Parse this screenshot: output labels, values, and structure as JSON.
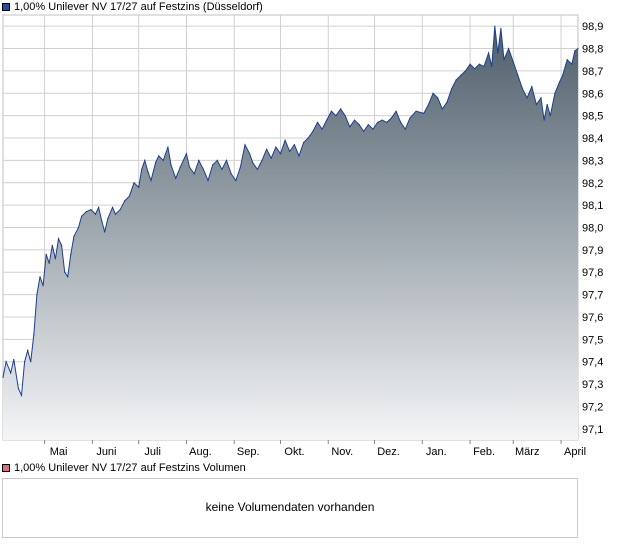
{
  "legend": {
    "price_label": "1,00% Unilever NV 17/27 auf Festzins (Düsseldorf)",
    "volume_label": "1,00% Unilever NV 17/27 auf Festzins Volumen"
  },
  "volume_panel": {
    "message": "keine Volumendaten vorhanden"
  },
  "colors": {
    "line": "#1d3f8e",
    "area_top": "#4d5e6a",
    "area_bottom": "#f4f5f7",
    "grid": "#d0d0d0",
    "price_swatch": "#1f4e9c",
    "volume_swatch": "#d9707a"
  },
  "chart_data": {
    "type": "area",
    "title": "1,00% Unilever NV 17/27 auf Festzins (Düsseldorf)",
    "xlabel": "",
    "ylabel": "",
    "ylim": [
      97.05,
      98.95
    ],
    "grid": true,
    "y_ticks": [
      "98,9",
      "98,8",
      "98,7",
      "98,6",
      "98,5",
      "98,4",
      "98,3",
      "98,2",
      "98,1",
      "98,0",
      "97,9",
      "97,8",
      "97,7",
      "97,6",
      "97,5",
      "97,4",
      "97,3",
      "97,2",
      "97,1"
    ],
    "x_ticks": [
      "Mai",
      "Juni",
      "Juli",
      "Aug.",
      "Sep.",
      "Okt.",
      "Nov.",
      "Dez.",
      "Jan.",
      "Feb.",
      "März",
      "April"
    ],
    "series": [
      {
        "name": "1,00% Unilever NV 17/27 auf Festzins",
        "points": [
          [
            "Apr 04",
            97.33
          ],
          [
            "Apr 06",
            97.4
          ],
          [
            "Apr 09",
            97.35
          ],
          [
            "Apr 11",
            97.41
          ],
          [
            "Apr 14",
            97.28
          ],
          [
            "Apr 16",
            97.25
          ],
          [
            "Apr 18",
            97.4
          ],
          [
            "Apr 20",
            97.45
          ],
          [
            "Apr 22",
            97.4
          ],
          [
            "Apr 24",
            97.52
          ],
          [
            "Apr 26",
            97.7
          ],
          [
            "Apr 28",
            97.78
          ],
          [
            "Apr 30",
            97.74
          ],
          [
            "Mai 02",
            97.88
          ],
          [
            "Mai 04",
            97.84
          ],
          [
            "Mai 06",
            97.92
          ],
          [
            "Mai 08",
            97.86
          ],
          [
            "Mai 10",
            97.95
          ],
          [
            "Mai 12",
            97.92
          ],
          [
            "Mai 14",
            97.8
          ],
          [
            "Mai 16",
            97.78
          ],
          [
            "Mai 18",
            97.88
          ],
          [
            "Mai 20",
            97.96
          ],
          [
            "Mai 23",
            98.0
          ],
          [
            "Mai 25",
            98.05
          ],
          [
            "Mai 28",
            98.07
          ],
          [
            "Mai 31",
            98.08
          ],
          [
            "Jun 03",
            98.06
          ],
          [
            "Jun 05",
            98.09
          ],
          [
            "Jun 07",
            98.03
          ],
          [
            "Jun 09",
            97.98
          ],
          [
            "Jun 11",
            98.04
          ],
          [
            "Jun 14",
            98.09
          ],
          [
            "Jun 16",
            98.06
          ],
          [
            "Jun 19",
            98.08
          ],
          [
            "Jun 22",
            98.12
          ],
          [
            "Jun 25",
            98.14
          ],
          [
            "Jun 28",
            98.2
          ],
          [
            "Jul 01",
            98.18
          ],
          [
            "Jul 03",
            98.26
          ],
          [
            "Jul 05",
            98.3
          ],
          [
            "Jul 07",
            98.25
          ],
          [
            "Jul 09",
            98.21
          ],
          [
            "Jul 12",
            98.29
          ],
          [
            "Jul 14",
            98.32
          ],
          [
            "Jul 17",
            98.3
          ],
          [
            "Jul 20",
            98.36
          ],
          [
            "Jul 22",
            98.28
          ],
          [
            "Jul 25",
            98.22
          ],
          [
            "Jul 28",
            98.27
          ],
          [
            "Aug 01",
            98.33
          ],
          [
            "Aug 03",
            98.27
          ],
          [
            "Aug 06",
            98.24
          ],
          [
            "Aug 09",
            98.3
          ],
          [
            "Aug 12",
            98.26
          ],
          [
            "Aug 15",
            98.21
          ],
          [
            "Aug 18",
            98.28
          ],
          [
            "Aug 21",
            98.3
          ],
          [
            "Aug 24",
            98.26
          ],
          [
            "Aug 27",
            98.3
          ],
          [
            "Aug 30",
            98.24
          ],
          [
            "Sep 02",
            98.21
          ],
          [
            "Sep 05",
            98.27
          ],
          [
            "Sep 08",
            98.37
          ],
          [
            "Sep 11",
            98.33
          ],
          [
            "Sep 13",
            98.29
          ],
          [
            "Sep 16",
            98.26
          ],
          [
            "Sep 19",
            98.3
          ],
          [
            "Sep 22",
            98.35
          ],
          [
            "Sep 25",
            98.31
          ],
          [
            "Sep 28",
            98.36
          ],
          [
            "Okt 01",
            98.33
          ],
          [
            "Okt 04",
            98.39
          ],
          [
            "Okt 07",
            98.34
          ],
          [
            "Okt 10",
            98.37
          ],
          [
            "Okt 13",
            98.32
          ],
          [
            "Okt 16",
            98.38
          ],
          [
            "Okt 19",
            98.4
          ],
          [
            "Okt 22",
            98.43
          ],
          [
            "Okt 25",
            98.47
          ],
          [
            "Okt 28",
            98.44
          ],
          [
            "Okt 31",
            98.48
          ],
          [
            "Nov 03",
            98.52
          ],
          [
            "Nov 06",
            98.5
          ],
          [
            "Nov 09",
            98.53
          ],
          [
            "Nov 12",
            98.5
          ],
          [
            "Nov 15",
            98.45
          ],
          [
            "Nov 18",
            98.48
          ],
          [
            "Nov 21",
            98.46
          ],
          [
            "Nov 24",
            98.43
          ],
          [
            "Nov 27",
            98.46
          ],
          [
            "Nov 30",
            98.44
          ],
          [
            "Dez 03",
            98.47
          ],
          [
            "Dez 06",
            98.48
          ],
          [
            "Dez 09",
            98.47
          ],
          [
            "Dez 12",
            98.49
          ],
          [
            "Dez 15",
            98.52
          ],
          [
            "Dez 18",
            98.47
          ],
          [
            "Dez 21",
            98.44
          ],
          [
            "Dez 24",
            98.49
          ],
          [
            "Dez 28",
            98.52
          ],
          [
            "Jan 02",
            98.51
          ],
          [
            "Jan 05",
            98.55
          ],
          [
            "Jan 08",
            98.6
          ],
          [
            "Jan 11",
            98.58
          ],
          [
            "Jan 14",
            98.53
          ],
          [
            "Jan 17",
            98.56
          ],
          [
            "Jan 20",
            98.62
          ],
          [
            "Jan 23",
            98.66
          ],
          [
            "Jan 26",
            98.68
          ],
          [
            "Jan 29",
            98.7
          ],
          [
            "Feb 01",
            98.73
          ],
          [
            "Feb 04",
            98.71
          ],
          [
            "Feb 07",
            98.73
          ],
          [
            "Feb 10",
            98.72
          ],
          [
            "Feb 13",
            98.78
          ],
          [
            "Feb 15",
            98.72
          ],
          [
            "Feb 17",
            98.9
          ],
          [
            "Feb 19",
            98.78
          ],
          [
            "Feb 21",
            98.89
          ],
          [
            "Feb 23",
            98.75
          ],
          [
            "Feb 26",
            98.8
          ],
          [
            "Mär 01",
            98.74
          ],
          [
            "Mär 04",
            98.68
          ],
          [
            "Mär 07",
            98.62
          ],
          [
            "Mär 10",
            98.58
          ],
          [
            "Mär 13",
            98.63
          ],
          [
            "Mär 16",
            98.55
          ],
          [
            "Mär 19",
            98.58
          ],
          [
            "Mär 21",
            98.48
          ],
          [
            "Mär 23",
            98.55
          ],
          [
            "Mär 25",
            98.5
          ],
          [
            "Mär 28",
            98.6
          ],
          [
            "Mär 31",
            98.65
          ],
          [
            "Apr 02",
            98.68
          ],
          [
            "Apr 05",
            98.75
          ],
          [
            "Apr 08",
            98.73
          ],
          [
            "Apr 10",
            98.79
          ],
          [
            "Apr 12",
            98.8
          ]
        ]
      }
    ]
  }
}
